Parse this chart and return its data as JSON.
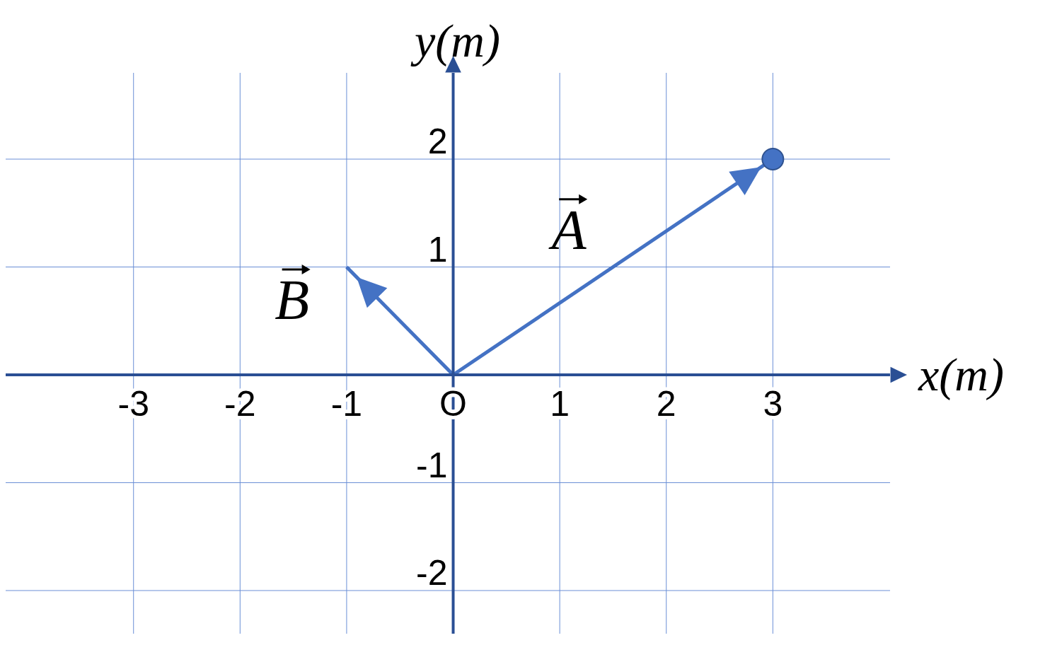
{
  "chart_data": {
    "type": "line",
    "xlabel": "x(m)",
    "ylabel": "y(m)",
    "xlim": [
      -4.2,
      4.1
    ],
    "ylim": [
      -2.4,
      2.8
    ],
    "xticks": [
      -3,
      -2,
      -1,
      {
        "value": 0,
        "label": "O"
      },
      1,
      2,
      3
    ],
    "yticks": [
      -2,
      -1,
      1,
      2
    ],
    "grid": true,
    "marker": "none",
    "series": [
      {
        "name": "A",
        "color": "#4472c4",
        "x": [
          0,
          3
        ],
        "values": [
          0,
          2
        ]
      },
      {
        "name": "B",
        "color": "#4472c4",
        "x": [
          0,
          -1
        ],
        "values": [
          0,
          1
        ]
      },
      {
        "type": "scatter",
        "color": "#4472c4",
        "x": [
          3
        ],
        "values": [
          2
        ],
        "marker": "circle"
      }
    ]
  }
}
